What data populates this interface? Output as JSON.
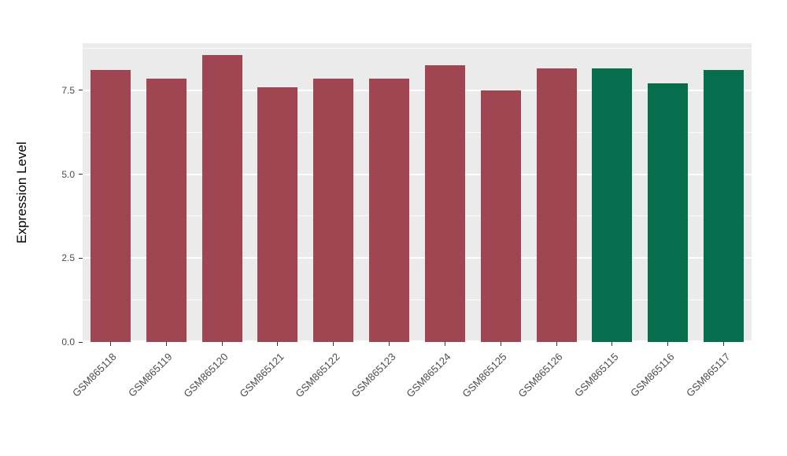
{
  "figure": {
    "background": "#FFFFFF",
    "panel_background": "#EBEBEB",
    "grid_color": "#FFFFFF",
    "axis_text_color": "#4D4D4D",
    "axis_title_color": "#000000"
  },
  "chart_data": {
    "type": "bar",
    "title": "",
    "xlabel": "",
    "ylabel": "Expression Level",
    "categories": [
      "GSM865118",
      "GSM865119",
      "GSM865120",
      "GSM865121",
      "GSM865122",
      "GSM865123",
      "GSM865124",
      "GSM865125",
      "GSM865126",
      "GSM865115",
      "GSM865116",
      "GSM865117"
    ],
    "values": [
      8.1,
      7.85,
      8.55,
      7.6,
      7.85,
      7.85,
      8.25,
      7.5,
      8.15,
      8.15,
      7.7,
      8.1
    ],
    "bar_colors": [
      "#A04552",
      "#A04552",
      "#A04552",
      "#A04552",
      "#A04552",
      "#A04552",
      "#A04552",
      "#A04552",
      "#A04552",
      "#066E4D",
      "#066E4D",
      "#066E4D"
    ],
    "group_colors": {
      "maroon_group": "#A04552",
      "green_group": "#066E4D"
    },
    "yticks": [
      0.0,
      2.5,
      5.0,
      7.5
    ],
    "ytick_labels": [
      "0.0",
      "2.5",
      "5.0",
      "7.5"
    ],
    "minor_gridlines": [
      1.25,
      3.75,
      6.25,
      8.75
    ],
    "ylim": [
      0,
      8.9
    ],
    "grid": true,
    "legend": false,
    "bar_width_fraction": 0.72
  }
}
